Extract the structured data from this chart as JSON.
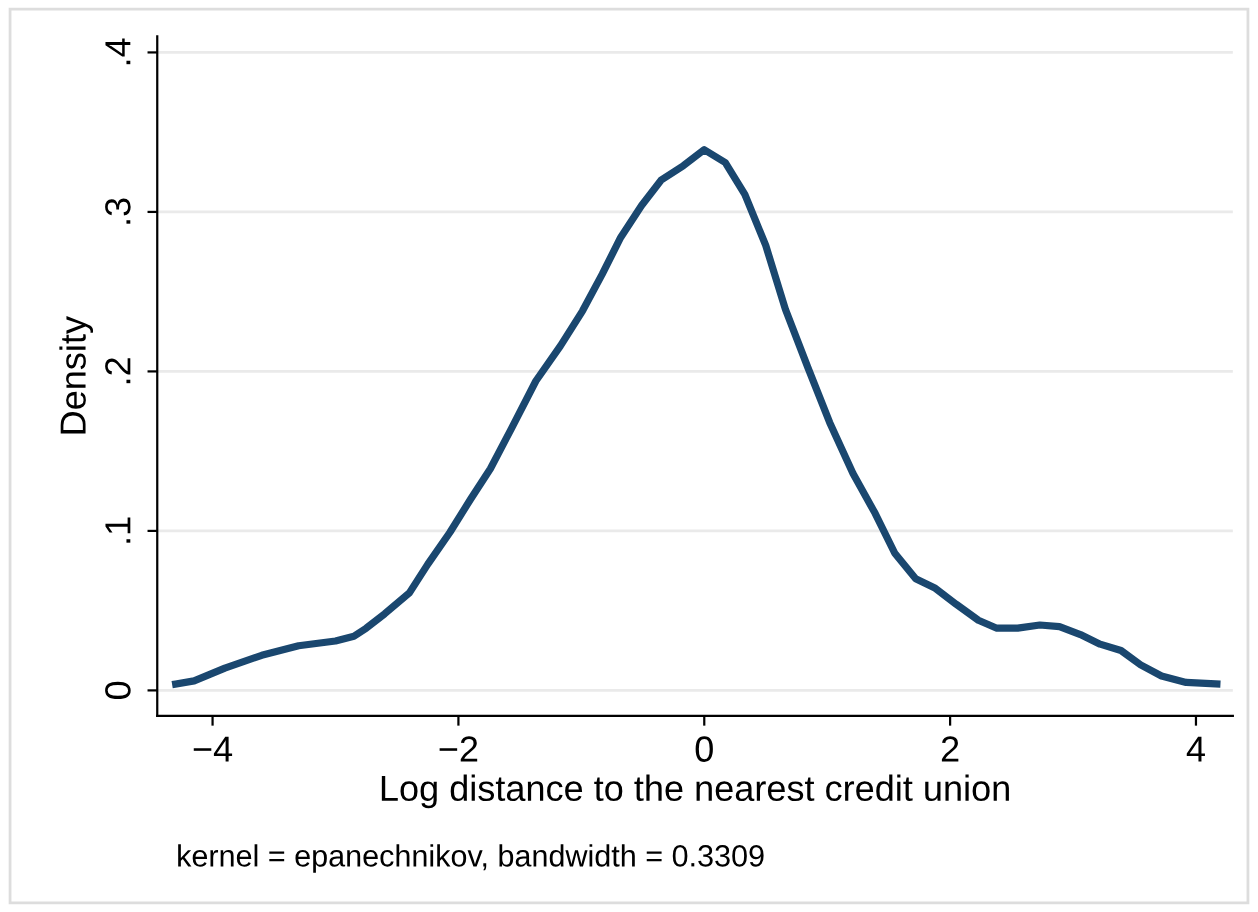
{
  "chart_data": {
    "type": "line",
    "xlabel": "Log distance to the nearest credit union",
    "ylabel": "Density",
    "annotations": [
      "kernel = epanechnikov, bandwidth = 0.3309"
    ],
    "series": [
      {
        "color": "#1a476f",
        "x": [
          -4.3,
          -4.15,
          -3.9,
          -3.6,
          -3.3,
          -3.0,
          -2.85,
          -2.75,
          -2.6,
          -2.4,
          -2.25,
          -2.07,
          -1.9,
          -1.74,
          -1.57,
          -1.37,
          -1.17,
          -0.99,
          -0.83,
          -0.68,
          -0.51,
          -0.35,
          -0.17,
          0,
          0.17,
          0.33,
          0.5,
          0.66,
          0.84,
          1.02,
          1.21,
          1.39,
          1.55,
          1.72,
          1.88,
          2.05,
          2.23,
          2.38,
          2.55,
          2.73,
          2.89,
          3.06,
          3.22,
          3.39,
          3.55,
          3.72,
          3.92,
          4.17
        ],
        "values": [
          0.004,
          0.006,
          0.014,
          0.022,
          0.028,
          0.031,
          0.034,
          0.039,
          0.048,
          0.061,
          0.079,
          0.099,
          0.12,
          0.139,
          0.164,
          0.194,
          0.216,
          0.238,
          0.261,
          0.284,
          0.304,
          0.32,
          0.329,
          0.339,
          0.331,
          0.311,
          0.279,
          0.239,
          0.203,
          0.168,
          0.136,
          0.111,
          0.086,
          0.07,
          0.064,
          0.054,
          0.044,
          0.039,
          0.039,
          0.041,
          0.04,
          0.035,
          0.029,
          0.025,
          0.016,
          0.009,
          0.005,
          0.004
        ]
      }
    ],
    "xlim": [
      -4.45,
      4.3
    ],
    "ylim": [
      -0.016,
      0.41
    ],
    "xticks": [
      {
        "value": -4,
        "label": "−4"
      },
      {
        "value": -2,
        "label": "−2"
      },
      0,
      2,
      4
    ],
    "yticks": [
      0,
      {
        "value": 0.1,
        "label": ".1"
      },
      {
        "value": 0.2,
        "label": ".2"
      },
      {
        "value": 0.3,
        "label": ".3"
      },
      {
        "value": 0.4,
        "label": ".4"
      }
    ],
    "grid": "y",
    "marker": "none",
    "line_style": "solid",
    "legend": false
  }
}
